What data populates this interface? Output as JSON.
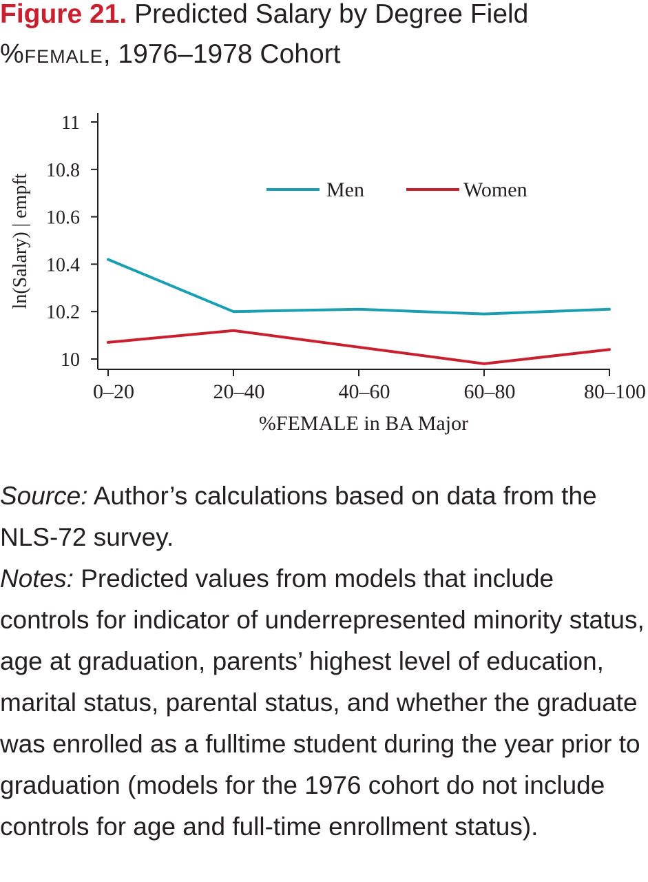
{
  "figure": {
    "label": "Figure 21.",
    "title_line1": "Predicted Salary by Degree Field",
    "title_caps": "%female",
    "title_rest": ", 1976–1978 Cohort"
  },
  "colors": {
    "men": "#1b9eb0",
    "women": "#c8202f",
    "accent": "#c8202f",
    "axis": "#231f20"
  },
  "chart_data": {
    "type": "line",
    "categories": [
      "0–20",
      "20–40",
      "40–60",
      "60–80",
      "80–100"
    ],
    "series": [
      {
        "name": "Men",
        "color": "#1b9eb0",
        "values": [
          10.42,
          10.2,
          10.21,
          10.19,
          10.21
        ]
      },
      {
        "name": "Women",
        "color": "#c8202f",
        "values": [
          10.07,
          10.12,
          10.05,
          9.98,
          10.04
        ]
      }
    ],
    "ylabel": "ln(Salary) | empft",
    "xlabel": "%FEMALE in BA Major",
    "ylim": [
      9.95,
      11
    ],
    "yticks": [
      10,
      10.2,
      10.4,
      10.6,
      10.8,
      11
    ],
    "ytick_labels": [
      "10",
      "10.2",
      "10.4",
      "10.6",
      "10.8",
      "11"
    ],
    "legend_position": "top-right",
    "grid": false
  },
  "source": {
    "label": "Source:",
    "text": " Author’s calculations based on data from the NLS-72 survey."
  },
  "notes": {
    "label": "Notes:",
    "text": " Predicted values from models that include controls for indicator of underrepresented minor­ity status, age at graduation, parents’ highest level of education, marital status, parental status, and whether the graduate was enrolled as a full­time student during the year prior to graduation (models for the 1976 cohort do not include con­trols for age and full-time enrollment status)."
  }
}
